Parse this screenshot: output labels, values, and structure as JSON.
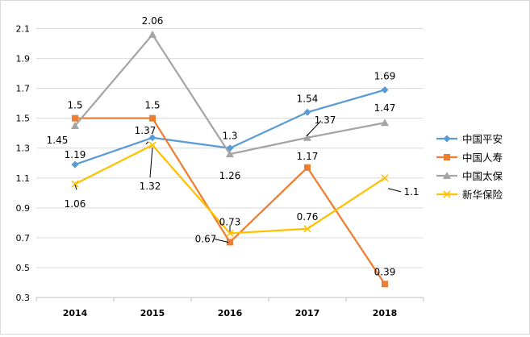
{
  "chart_data": {
    "type": "line",
    "title": "",
    "xlabel": "",
    "ylabel": "",
    "categories": [
      "2014",
      "2015",
      "2016",
      "2017",
      "2018"
    ],
    "ylim": [
      0.3,
      2.2
    ],
    "y_ticks": [
      "0.3",
      "0.5",
      "0.7",
      "0.9",
      "1.1",
      "1.3",
      "1.5",
      "1.7",
      "1.9",
      "2.1"
    ],
    "grid": true,
    "legend_position": "right",
    "series": [
      {
        "name": "中国平安",
        "values": [
          1.19,
          1.37,
          1.3,
          1.54,
          1.69
        ],
        "labels": [
          "1.19",
          "1.37",
          "1.3",
          "1.54",
          "1.69"
        ],
        "color": "#5b9bd5",
        "marker": "diamond"
      },
      {
        "name": "中国人寿",
        "values": [
          1.5,
          1.5,
          0.67,
          1.17,
          0.39
        ],
        "labels": [
          "1.5",
          "1.5",
          "0.67",
          "1.17",
          "0.39"
        ],
        "color": "#ed7d31",
        "marker": "square"
      },
      {
        "name": "中国太保",
        "values": [
          1.45,
          2.06,
          1.26,
          1.37,
          1.47
        ],
        "labels": [
          "1.45",
          "2.06",
          "1.26",
          "1.37",
          "1.47"
        ],
        "color": "#a5a5a5",
        "marker": "triangle"
      },
      {
        "name": "新华保险",
        "values": [
          1.06,
          1.32,
          0.73,
          0.76,
          1.1
        ],
        "labels": [
          "1.06",
          "1.32",
          "0.73",
          "0.76",
          "1.1"
        ],
        "color": "#ffc000",
        "marker": "x"
      }
    ]
  }
}
